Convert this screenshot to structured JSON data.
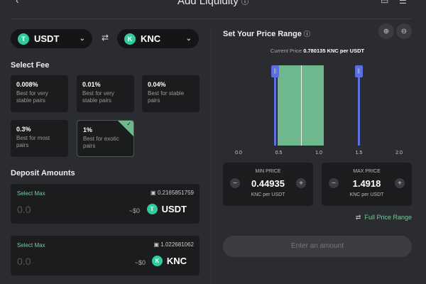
{
  "header": {
    "title": "Add Liquidity",
    "back_icon": "arrow-left-icon",
    "info_icon": "info-icon"
  },
  "tokens": {
    "a": {
      "symbol": "USDT",
      "icon": "tether-icon"
    },
    "b": {
      "symbol": "KNC",
      "icon": "knc-icon"
    },
    "swap_icon": "swap-arrows-icon"
  },
  "fee": {
    "title": "Select Fee",
    "selected": "1%",
    "options": [
      {
        "pct": "0.008%",
        "desc": "Best for very stable pairs"
      },
      {
        "pct": "0.01%",
        "desc": "Best for very stable pairs"
      },
      {
        "pct": "0.04%",
        "desc": "Best for stable pairs"
      },
      {
        "pct": "0.3%",
        "desc": "Best for most pairs"
      },
      {
        "pct": "1%",
        "desc": "Best for exotic pairs"
      }
    ]
  },
  "deposit": {
    "title": "Deposit Amounts",
    "items": [
      {
        "select_max": "Select Max",
        "balance": "0.2165851759",
        "amount": "0.0",
        "usd": "~$0",
        "symbol": "USDT"
      },
      {
        "select_max": "Select Max",
        "balance": "1.022681062",
        "amount": "0.0",
        "usd": "~$0",
        "symbol": "KNC"
      }
    ]
  },
  "range": {
    "title": "Set Your Price Range",
    "current_label": "Current Price",
    "current_value": "0.780135 KNC per USDT",
    "ticks": [
      "0.0",
      "0.5",
      "1.0",
      "1.5",
      "2.0"
    ],
    "axis_range": [
      0,
      2
    ],
    "current": 0.780135,
    "min": 0.44935,
    "max": 1.4918,
    "liquidity_range": [
      0.49,
      1.06
    ],
    "colors": {
      "liquidity": "#6fb88e",
      "handle": "#5b6fe0"
    },
    "min_box": {
      "label": "MIN PRICE",
      "value": "0.44935",
      "unit": "KNC per USDT"
    },
    "max_box": {
      "label": "MAX PRICE",
      "value": "1.4918",
      "unit": "KNC per USDT"
    },
    "full_range": "Full Price Range"
  },
  "cta": "Enter an amount"
}
